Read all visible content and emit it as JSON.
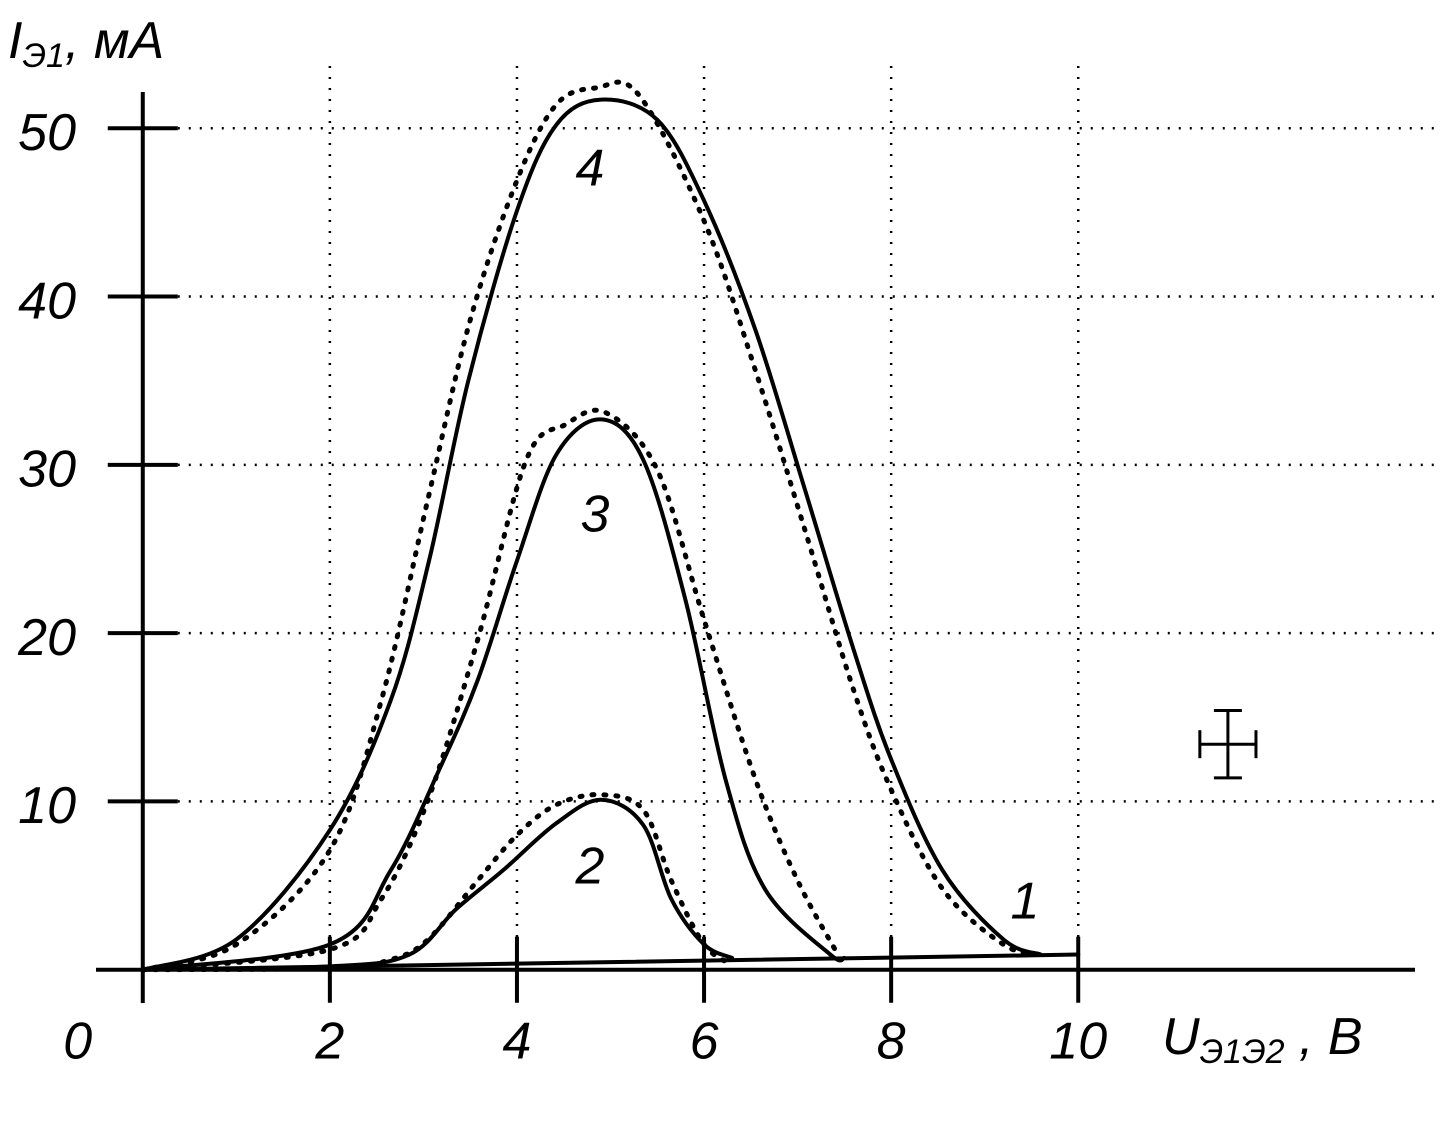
{
  "chart_data": {
    "type": "line",
    "ylabel": {
      "main": "I",
      "sub": "Э1",
      "unit": ", мА"
    },
    "xlabel": {
      "main": "U",
      "sub": "Э1Э2",
      "unit": " , В"
    },
    "xlim": [
      -0.5,
      13.6
    ],
    "ylim": [
      -1.8,
      53.7
    ],
    "xticks": [
      0,
      2,
      4,
      6,
      8,
      10
    ],
    "yticks": [
      10,
      20,
      30,
      40,
      50
    ],
    "grid": true,
    "series": [
      {
        "name": "1",
        "color": "#000000",
        "style": "solid",
        "x": [
          0,
          10
        ],
        "values": [
          0,
          0.9
        ]
      },
      {
        "name": "2",
        "color": "#000000",
        "style": "solid",
        "x": [
          0,
          2,
          2.85,
          3.35,
          3.85,
          4.42,
          4.9,
          5.35,
          5.65,
          6,
          6.3
        ],
        "values": [
          0,
          0.2,
          0.9,
          3.6,
          5.9,
          8.7,
          10.1,
          8.6,
          4.2,
          1.5,
          0.7
        ]
      },
      {
        "color": "#000000",
        "style": "dotted",
        "x": [
          0,
          2,
          2.65,
          3.05,
          3.58,
          4,
          4.42,
          4.9,
          5.35,
          5.65,
          6,
          6.3
        ],
        "values": [
          0,
          0.1,
          0.6,
          1.8,
          5.3,
          8,
          9.8,
          10.4,
          9.5,
          5.3,
          1.5,
          0.3
        ]
      },
      {
        "name": "3",
        "color": "#000000",
        "style": "solid",
        "x": [
          0,
          2,
          2.65,
          3.17,
          3.58,
          4,
          4.42,
          4.9,
          5.35,
          5.8,
          6.23,
          6.65,
          7.35,
          7.5
        ],
        "values": [
          0,
          1.5,
          5.9,
          11.9,
          17.2,
          24.3,
          30.6,
          32.7,
          30.3,
          22,
          11.3,
          4.8,
          0.9,
          0.7
        ]
      },
      {
        "color": "#000000",
        "style": "dotted",
        "x": [
          0,
          2,
          2.55,
          3.05,
          3.58,
          4.1,
          4.52,
          4.95,
          5.5,
          6,
          6.55,
          7,
          7.4
        ],
        "values": [
          0,
          1.2,
          4.2,
          10.1,
          19.6,
          30.3,
          32.4,
          33.1,
          29.7,
          20.8,
          11.3,
          5.3,
          1.2
        ]
      },
      {
        "name": "4",
        "color": "#000000",
        "style": "solid",
        "x": [
          0,
          1,
          2,
          2.65,
          3.06,
          3.48,
          4,
          4.42,
          4.9,
          5.5,
          6,
          6.55,
          7.08,
          7.6,
          8,
          8.55,
          9.2,
          9.6
        ],
        "values": [
          0,
          1.8,
          8.3,
          16,
          24.3,
          35,
          45.1,
          50.2,
          51.7,
          50.5,
          45.7,
          38,
          28.5,
          19,
          12.5,
          5.9,
          1.8,
          0.9
        ]
      },
      {
        "color": "#000000",
        "style": "dotted",
        "x": [
          0,
          1,
          2,
          2.55,
          3.05,
          3.5,
          4,
          4.42,
          4.85,
          5.3,
          6,
          6.55,
          7.08,
          7.6,
          8,
          8.55,
          9.2,
          9.6
        ],
        "values": [
          0,
          1.5,
          7.1,
          16,
          28,
          38.6,
          46.9,
          51.4,
          52.4,
          52,
          44.5,
          35.6,
          26.1,
          16.6,
          10.7,
          4.8,
          1.5,
          0.9
        ]
      }
    ],
    "error_marker": {
      "x": 11.6,
      "y": 13.4,
      "xerr": 0.3,
      "yerr": 2
    }
  }
}
